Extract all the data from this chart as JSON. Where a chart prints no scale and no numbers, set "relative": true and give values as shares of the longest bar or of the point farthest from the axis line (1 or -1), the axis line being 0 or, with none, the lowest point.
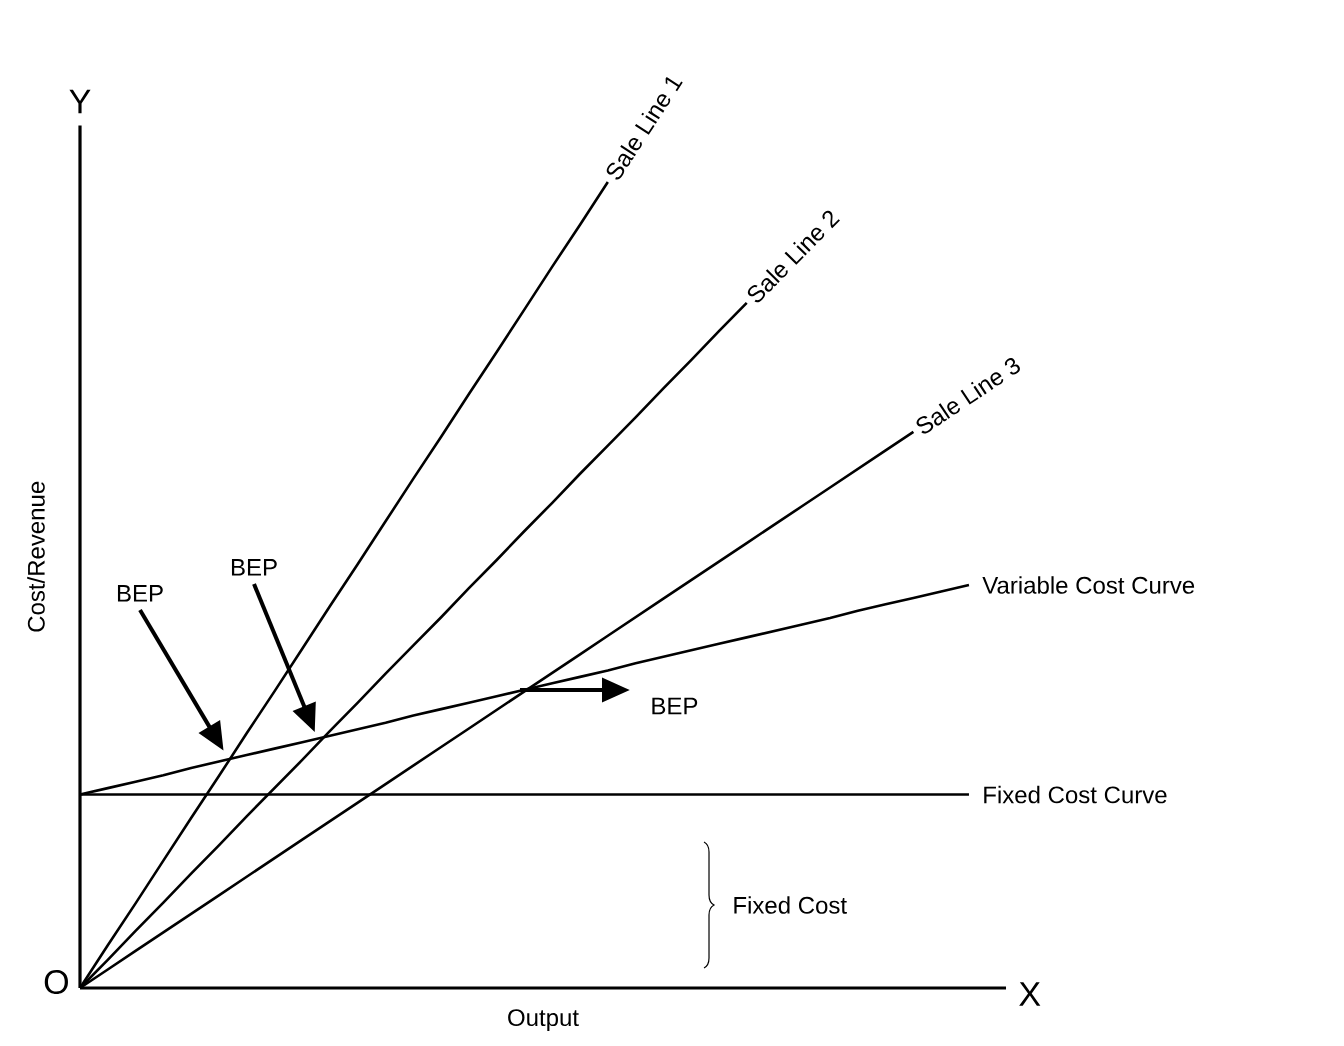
{
  "chart_data": {
    "type": "line",
    "relative": true,
    "xlabel": "Output",
    "ylabel": "Cost/Revenue",
    "line_style": "solid",
    "marker": "none",
    "categories": [
      null,
      null,
      null,
      null,
      null,
      null,
      null,
      null,
      null,
      null,
      null,
      null,
      null,
      null,
      null,
      null,
      null,
      null,
      null,
      null,
      null,
      null,
      null,
      null,
      null,
      null,
      null,
      null,
      null,
      null,
      null,
      null,
      null
    ],
    "series": [
      {
        "name": "Sale Line 1",
        "color": "#000000",
        "values": [
          0,
          0.053,
          0.105,
          0.158,
          0.211,
          0.263,
          0.316,
          0.368,
          0.421,
          0.474,
          0.526,
          0.579,
          0.632,
          0.684,
          0.737,
          0.789,
          0.842,
          0.895,
          0.947,
          1.0,
          null,
          null,
          null,
          null,
          null,
          null,
          null,
          null,
          null,
          null,
          null,
          null,
          null
        ]
      },
      {
        "name": "Sale Line 2",
        "color": "#000000",
        "values": [
          0,
          0.035,
          0.071,
          0.106,
          0.142,
          0.177,
          0.213,
          0.248,
          0.283,
          0.319,
          0.354,
          0.39,
          0.425,
          0.46,
          0.496,
          0.531,
          0.567,
          0.602,
          0.638,
          0.673,
          0.708,
          0.744,
          0.779,
          0.815,
          0.85,
          null,
          null,
          null,
          null,
          null,
          null,
          null,
          null
        ]
      },
      {
        "name": "Sale Line 3",
        "color": "#000000",
        "values": [
          0,
          0.023,
          0.046,
          0.069,
          0.092,
          0.115,
          0.138,
          0.161,
          0.184,
          0.207,
          0.23,
          0.253,
          0.276,
          0.299,
          0.322,
          0.345,
          0.368,
          0.391,
          0.414,
          0.437,
          0.46,
          0.483,
          0.506,
          0.529,
          0.552,
          0.575,
          0.598,
          0.621,
          0.644,
          0.667,
          0.69,
          null,
          null
        ]
      },
      {
        "name": "Variable Cost Curve",
        "color": "#000000",
        "values": [
          0.24,
          0.248,
          0.256,
          0.264,
          0.273,
          0.281,
          0.289,
          0.297,
          0.305,
          0.313,
          0.321,
          0.329,
          0.338,
          0.346,
          0.354,
          0.362,
          0.37,
          0.378,
          0.386,
          0.394,
          0.403,
          0.411,
          0.419,
          0.427,
          0.435,
          0.443,
          0.451,
          0.459,
          0.468,
          0.476,
          0.484,
          0.492,
          0.5
        ]
      }
    ],
    "ref_lines": [
      {
        "axis": "y",
        "value": 0.24,
        "label": "Fixed Cost Curve",
        "color": "#000000"
      }
    ],
    "annotations": [
      "BEP",
      "BEP",
      "BEP",
      "Fixed Cost",
      "Y",
      "X",
      "O"
    ]
  }
}
